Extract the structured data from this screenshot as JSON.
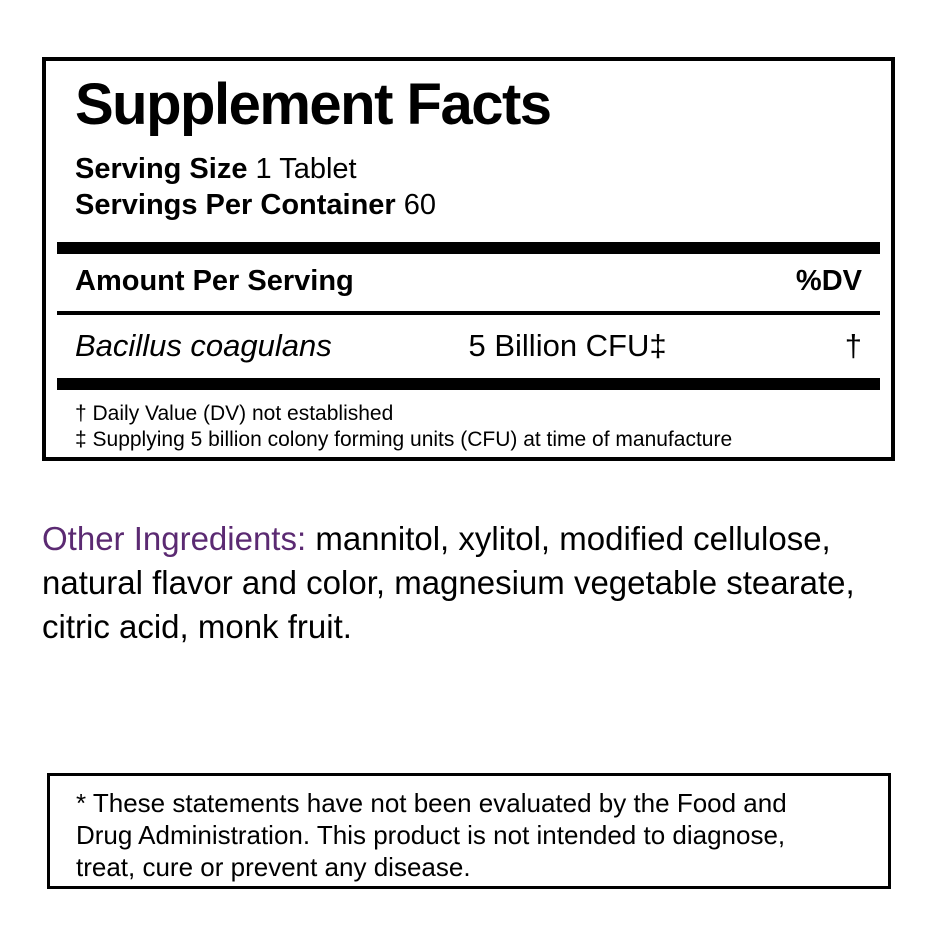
{
  "colors": {
    "accent_purple": "#5b2a72",
    "text": "#000000",
    "background": "#ffffff"
  },
  "supplement_facts": {
    "title": "Supplement Facts",
    "serving_size_label": "Serving Size",
    "serving_size_value": "1 Tablet",
    "servings_per_container_label": "Servings Per Container",
    "servings_per_container_value": "60",
    "columns": {
      "amount_header": "Amount Per Serving",
      "dv_header": "%DV"
    },
    "rows": [
      {
        "name": "Bacillus coagulans",
        "amount": "5 Billion CFU‡",
        "dv": "†"
      }
    ],
    "footnotes": [
      "† Daily Value (DV) not established",
      "‡ Supplying 5 billion colony forming units (CFU) at time of manufacture"
    ]
  },
  "other_ingredients": {
    "label": "Other Ingredients:",
    "line1_rest": " mannitol, xylitol, modified cellulose,",
    "line2": "natural flavor and color, magnesium vegetable stearate,",
    "line3": "citric acid, monk fruit."
  },
  "disclaimer": {
    "line1": "* These statements have not been evaluated by the Food and",
    "line2": "Drug Administration. This product is not intended to diagnose,",
    "line3": "treat, cure or prevent any disease."
  }
}
